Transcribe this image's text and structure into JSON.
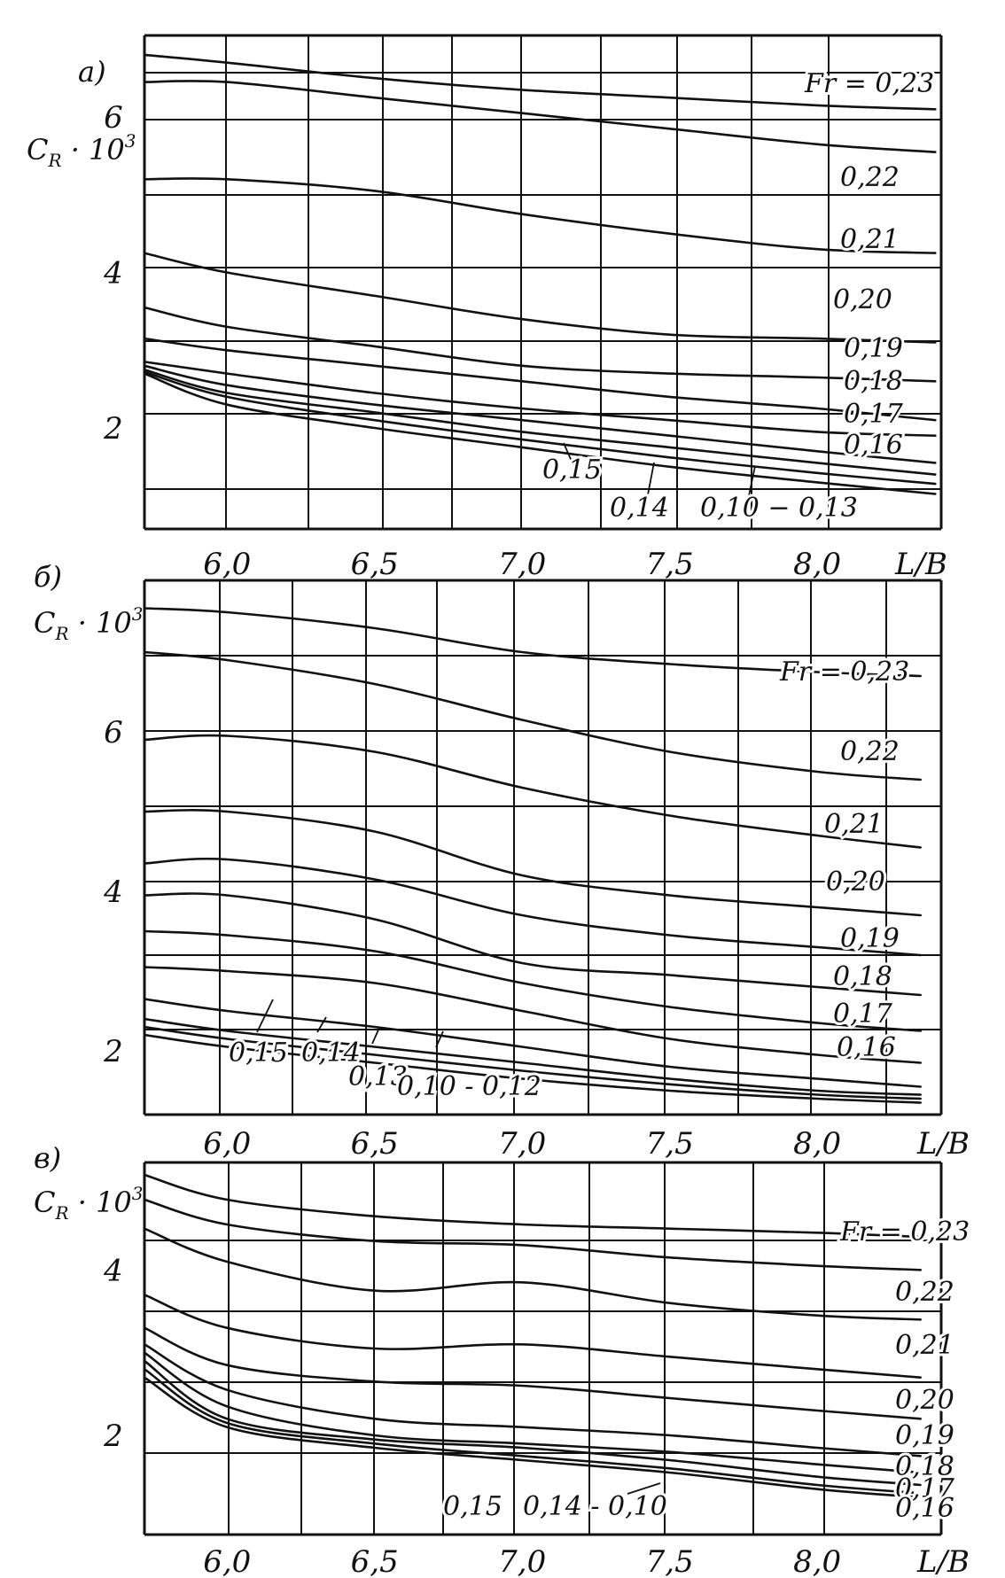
{
  "page": {
    "background": "#ffffff",
    "ink": "#111111"
  },
  "chart_data": [
    {
      "type": "line",
      "panel_label": "а)",
      "ylabel": "C_R · 10³",
      "ylabel_parts": {
        "base": "C",
        "sub": "R",
        "mid": " · 10",
        "sup": "3"
      },
      "xlabel": "L/B",
      "xlim": [
        5.72,
        8.42
      ],
      "ylim": [
        0.7,
        7.05
      ],
      "x_ticks": [
        6.0,
        6.5,
        7.0,
        7.5,
        8.0
      ],
      "x_tick_labels": [
        "6,0",
        "6,5",
        "7,0",
        "7,5",
        "8,0"
      ],
      "y_ticks": [
        2,
        4,
        6
      ],
      "y_tick_labels": [
        "2",
        "4",
        "6"
      ],
      "grid": true,
      "series": [
        {
          "name": "Fr=0,23",
          "x": [
            5.72,
            6.0,
            6.5,
            7.0,
            7.5,
            8.0,
            8.4
          ],
          "y": [
            6.8,
            6.7,
            6.5,
            6.35,
            6.25,
            6.15,
            6.1
          ]
        },
        {
          "name": "0,22",
          "x": [
            5.72,
            6.0,
            6.5,
            7.0,
            7.5,
            8.0,
            8.4
          ],
          "y": [
            6.45,
            6.45,
            6.25,
            6.05,
            5.85,
            5.65,
            5.55
          ]
        },
        {
          "name": "0,21",
          "x": [
            5.72,
            6.0,
            6.5,
            7.0,
            7.5,
            8.0,
            8.4
          ],
          "y": [
            5.2,
            5.2,
            5.05,
            4.75,
            4.5,
            4.3,
            4.25
          ]
        },
        {
          "name": "0,20",
          "x": [
            5.72,
            6.0,
            6.5,
            7.0,
            7.5,
            8.0,
            8.4
          ],
          "y": [
            4.25,
            4.0,
            3.7,
            3.4,
            3.2,
            3.15,
            3.1
          ]
        },
        {
          "name": "0,19",
          "x": [
            5.72,
            6.0,
            6.5,
            7.0,
            7.5,
            8.0,
            8.4
          ],
          "y": [
            3.55,
            3.3,
            3.05,
            2.8,
            2.7,
            2.65,
            2.6
          ]
        },
        {
          "name": "0,18",
          "x": [
            5.72,
            6.0,
            6.5,
            7.0,
            7.5,
            8.0,
            8.4
          ],
          "y": [
            3.15,
            3.0,
            2.8,
            2.6,
            2.4,
            2.25,
            2.1
          ]
        },
        {
          "name": "0,17",
          "x": [
            5.72,
            6.0,
            6.5,
            7.0,
            7.5,
            8.0,
            8.4
          ],
          "y": [
            2.85,
            2.7,
            2.45,
            2.25,
            2.1,
            1.95,
            1.9
          ]
        },
        {
          "name": "0,16",
          "x": [
            5.72,
            6.0,
            6.5,
            7.0,
            7.5,
            8.0,
            8.4
          ],
          "y": [
            2.8,
            2.55,
            2.3,
            2.1,
            1.9,
            1.7,
            1.55
          ]
        },
        {
          "name": "0,15",
          "x": [
            5.72,
            6.0,
            6.5,
            7.0,
            7.5,
            8.0,
            8.4
          ],
          "y": [
            2.75,
            2.45,
            2.2,
            1.95,
            1.75,
            1.55,
            1.4
          ]
        },
        {
          "name": "0,14",
          "x": [
            5.72,
            6.0,
            6.5,
            7.0,
            7.5,
            8.0,
            8.4
          ],
          "y": [
            2.72,
            2.4,
            2.1,
            1.85,
            1.62,
            1.42,
            1.28
          ]
        },
        {
          "name": "0,10 - 0,13",
          "x": [
            5.72,
            6.0,
            6.5,
            7.0,
            7.5,
            8.0,
            8.4
          ],
          "y": [
            2.7,
            2.3,
            2.0,
            1.75,
            1.5,
            1.3,
            1.15
          ]
        }
      ],
      "labels": [
        "Fr = 0,23",
        "0,22",
        "0,21",
        "0,20",
        "0,19",
        "0,18",
        "0,17",
        "0,16",
        "0,15",
        "0,14",
        "0,10 − 0,13"
      ]
    },
    {
      "type": "line",
      "panel_label": "б)",
      "ylabel": "C_R · 10³",
      "ylabel_parts": {
        "base": "C",
        "sub": "R",
        "mid": " · 10",
        "sup": "3"
      },
      "xlabel": "L/B",
      "xlim": [
        5.72,
        8.42
      ],
      "ylim": [
        1.2,
        7.9
      ],
      "x_ticks": [
        6.0,
        6.5,
        7.0,
        7.5,
        8.0
      ],
      "x_tick_labels": [
        "6,0",
        "6,5",
        "7,0",
        "7,5",
        "8,0"
      ],
      "y_ticks": [
        2,
        4,
        6
      ],
      "y_tick_labels": [
        "2",
        "4",
        "6"
      ],
      "grid": true,
      "series": [
        {
          "name": "Fr=0,23",
          "x": [
            5.72,
            6.0,
            6.5,
            7.0,
            7.5,
            8.0,
            8.35
          ],
          "y": [
            7.55,
            7.5,
            7.3,
            7.0,
            6.85,
            6.75,
            6.7
          ]
        },
        {
          "name": "0,22",
          "x": [
            5.72,
            6.0,
            6.5,
            7.0,
            7.5,
            8.0,
            8.35
          ],
          "y": [
            7.0,
            6.9,
            6.6,
            6.15,
            5.75,
            5.5,
            5.4
          ]
        },
        {
          "name": "0,21",
          "x": [
            5.72,
            6.0,
            6.5,
            7.0,
            7.5,
            8.0,
            8.35
          ],
          "y": [
            5.9,
            5.95,
            5.75,
            5.3,
            4.95,
            4.7,
            4.55
          ]
        },
        {
          "name": "0,20",
          "x": [
            5.72,
            6.0,
            6.5,
            7.0,
            7.5,
            8.0,
            8.35
          ],
          "y": [
            5.0,
            5.0,
            4.75,
            4.2,
            3.95,
            3.8,
            3.7
          ]
        },
        {
          "name": "0,19",
          "x": [
            5.72,
            6.0,
            6.5,
            7.0,
            7.5,
            8.0,
            8.35
          ],
          "y": [
            4.35,
            4.4,
            4.15,
            3.7,
            3.45,
            3.3,
            3.2
          ]
        },
        {
          "name": "0,18",
          "x": [
            5.72,
            6.0,
            6.5,
            7.0,
            7.5,
            8.0,
            8.35
          ],
          "y": [
            3.95,
            3.95,
            3.65,
            3.1,
            2.95,
            2.8,
            2.7
          ]
        },
        {
          "name": "0,17",
          "x": [
            5.72,
            6.0,
            6.5,
            7.0,
            7.5,
            8.0,
            8.35
          ],
          "y": [
            3.5,
            3.45,
            3.25,
            2.85,
            2.55,
            2.35,
            2.25
          ]
        },
        {
          "name": "0,16",
          "x": [
            5.72,
            6.0,
            6.5,
            7.0,
            7.5,
            8.0,
            8.35
          ],
          "y": [
            3.05,
            3.0,
            2.85,
            2.5,
            2.15,
            1.95,
            1.85
          ]
        },
        {
          "name": "0,15",
          "x": [
            5.72,
            6.0,
            6.5,
            7.0,
            7.5,
            8.0,
            8.35
          ],
          "y": [
            2.65,
            2.5,
            2.3,
            2.05,
            1.8,
            1.65,
            1.55
          ]
        },
        {
          "name": "0,14",
          "x": [
            5.72,
            6.0,
            6.5,
            7.0,
            7.5,
            8.0,
            8.35
          ],
          "y": [
            2.4,
            2.25,
            2.05,
            1.85,
            1.65,
            1.5,
            1.45
          ]
        },
        {
          "name": "0,13",
          "x": [
            5.72,
            6.0,
            6.5,
            7.0,
            7.5,
            8.0,
            8.35
          ],
          "y": [
            2.3,
            2.15,
            1.95,
            1.75,
            1.58,
            1.45,
            1.4
          ]
        },
        {
          "name": "0,10 - 0,12",
          "x": [
            5.72,
            6.0,
            6.5,
            7.0,
            7.5,
            8.0,
            8.35
          ],
          "y": [
            2.2,
            2.05,
            1.85,
            1.65,
            1.5,
            1.4,
            1.35
          ]
        }
      ],
      "labels": [
        "Fr = 0,23",
        "0,22",
        "0,21",
        "0,20",
        "0,19",
        "0,18",
        "0,17",
        "0,16",
        "0,15",
        "0,14",
        "0,13",
        "0,10 - 0,12"
      ]
    },
    {
      "type": "line",
      "panel_label": "в)",
      "ylabel": "C_R · 10³",
      "ylabel_parts": {
        "base": "C",
        "sub": "R",
        "mid": " · 10",
        "sup": "3"
      },
      "xlabel": "L/B",
      "xlim": [
        5.72,
        8.42
      ],
      "ylim": [
        0.8,
        5.3
      ],
      "x_ticks": [
        6.0,
        6.5,
        7.0,
        7.5,
        8.0
      ],
      "x_tick_labels": [
        "6,0",
        "6,5",
        "7,0",
        "7,5",
        "8,0"
      ],
      "y_ticks": [
        2,
        4
      ],
      "y_tick_labels": [
        "2",
        "4"
      ],
      "grid": true,
      "series": [
        {
          "name": "Fr=0,23",
          "x": [
            5.72,
            6.0,
            6.5,
            7.0,
            7.5,
            8.0,
            8.35
          ],
          "y": [
            5.15,
            4.85,
            4.65,
            4.55,
            4.5,
            4.45,
            4.4
          ]
        },
        {
          "name": "0,22",
          "x": [
            5.72,
            6.0,
            6.5,
            7.0,
            7.5,
            8.0,
            8.35
          ],
          "y": [
            4.85,
            4.55,
            4.35,
            4.3,
            4.15,
            4.05,
            4.0
          ]
        },
        {
          "name": "0,21",
          "x": [
            5.72,
            6.0,
            6.5,
            7.0,
            7.5,
            8.0,
            8.35
          ],
          "y": [
            4.5,
            4.1,
            3.75,
            3.85,
            3.6,
            3.45,
            3.4
          ]
        },
        {
          "name": "0,20",
          "x": [
            5.72,
            6.0,
            6.5,
            7.0,
            7.5,
            8.0,
            8.35
          ],
          "y": [
            3.7,
            3.3,
            3.05,
            3.1,
            2.95,
            2.8,
            2.7
          ]
        },
        {
          "name": "0,19",
          "x": [
            5.72,
            6.0,
            6.5,
            7.0,
            7.5,
            8.0,
            8.35
          ],
          "y": [
            3.3,
            2.85,
            2.65,
            2.6,
            2.45,
            2.3,
            2.2
          ]
        },
        {
          "name": "0,18",
          "x": [
            5.72,
            6.0,
            6.5,
            7.0,
            7.5,
            8.0,
            8.35
          ],
          "y": [
            3.1,
            2.55,
            2.2,
            2.1,
            2.0,
            1.85,
            1.75
          ]
        },
        {
          "name": "0,17",
          "x": [
            5.72,
            6.0,
            6.5,
            7.0,
            7.5,
            8.0,
            8.35
          ],
          "y": [
            3.0,
            2.35,
            2.0,
            1.9,
            1.8,
            1.65,
            1.55
          ]
        },
        {
          "name": "0,16",
          "x": [
            5.72,
            6.0,
            6.5,
            7.0,
            7.5,
            8.0,
            8.35
          ],
          "y": [
            2.9,
            2.2,
            1.95,
            1.85,
            1.7,
            1.5,
            1.4
          ]
        },
        {
          "name": "0,15",
          "x": [
            5.72,
            6.0,
            6.5,
            7.0,
            7.5,
            8.0,
            8.35
          ],
          "y": [
            2.8,
            2.15,
            1.9,
            1.75,
            1.6,
            1.4,
            1.3
          ]
        },
        {
          "name": "0,14-0,10",
          "x": [
            5.72,
            6.0,
            6.5,
            7.0,
            7.5,
            8.0,
            8.35
          ],
          "y": [
            2.7,
            2.1,
            1.85,
            1.7,
            1.55,
            1.35,
            1.25
          ]
        }
      ],
      "labels": [
        "Fr = 0,23",
        "0,22",
        "0,21",
        "0,20",
        "0,19",
        "0,18",
        "0,17",
        "0,16",
        "0,15",
        "0,14 - 0,10"
      ]
    }
  ]
}
